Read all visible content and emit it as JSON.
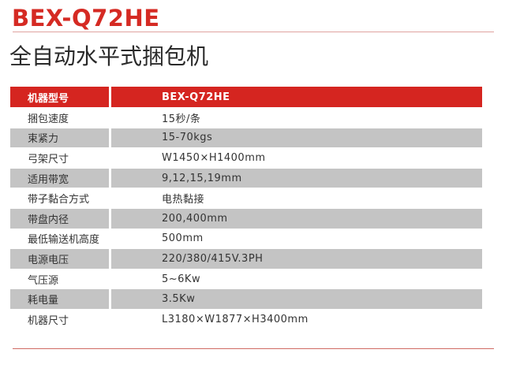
{
  "model": "BEX-Q72HE",
  "title": "全自动水平式捆包机",
  "table": {
    "header": {
      "label": "机器型号",
      "value": "BEX-Q72HE"
    },
    "rows": [
      {
        "label": "捆包速度",
        "value": "15秒/条"
      },
      {
        "label": "束紧力",
        "value": "15-70kgs"
      },
      {
        "label": "弓架尺寸",
        "value": "W1450×H1400mm"
      },
      {
        "label": "适用带宽",
        "value": "9,12,15,19mm"
      },
      {
        "label": "带子黏合方式",
        "value": "电热黏接"
      },
      {
        "label": "带盘内径",
        "value": "200,400mm"
      },
      {
        "label": "最低输送机高度",
        "value": "500mm"
      },
      {
        "label": "电源电压",
        "value": "220/380/415V.3PH"
      },
      {
        "label": "气压源",
        "value": "5~6Kw"
      },
      {
        "label": "耗电量",
        "value": "3.5Kw"
      },
      {
        "label": "机器尺寸",
        "value": "L3180×W1877×H3400mm"
      }
    ]
  },
  "colors": {
    "accent": "#d52520",
    "stripe": "#c4c4c4"
  }
}
